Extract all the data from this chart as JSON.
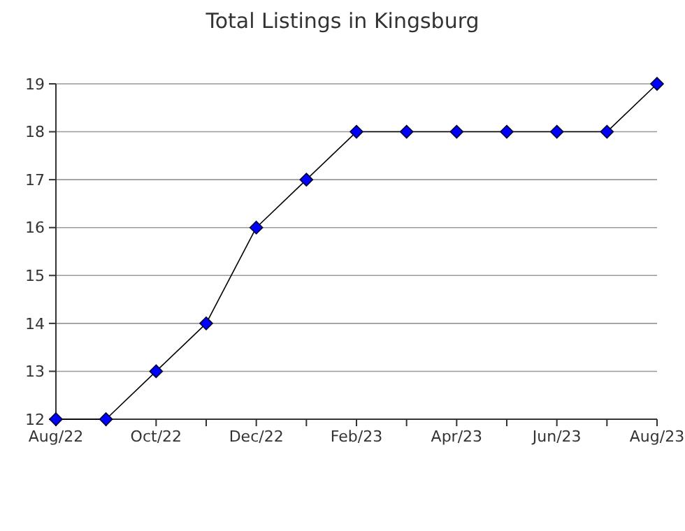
{
  "chart_data": {
    "type": "line",
    "title": "Total Listings in Kingsburg",
    "categories": [
      "Aug/22",
      null,
      "Oct/22",
      null,
      "Dec/22",
      null,
      "Feb/23",
      null,
      "Apr/23",
      null,
      "Jun/23",
      null,
      "Aug/23"
    ],
    "series": [
      {
        "color": "#0000ff",
        "values": [
          12,
          12,
          13,
          14,
          16,
          17,
          18,
          18,
          18,
          18,
          18,
          18,
          19
        ]
      }
    ],
    "ylim": [
      12,
      19
    ],
    "yticks": [
      12,
      13,
      14,
      15,
      16,
      17,
      18,
      19
    ],
    "grid": "y",
    "marker": "diamond",
    "line_style": "solid"
  }
}
